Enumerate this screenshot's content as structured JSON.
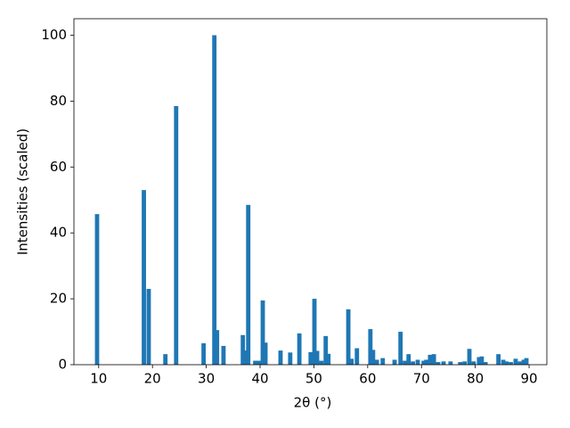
{
  "chart_data": {
    "type": "bar",
    "x_label": "2θ (°)",
    "y_label": "Intensities (scaled)",
    "x": [
      9.7,
      18.4,
      19.3,
      22.4,
      24.4,
      29.5,
      31.5,
      32.0,
      33.2,
      36.8,
      37.3,
      37.8,
      39.1,
      39.8,
      40.5,
      41.0,
      43.8,
      45.6,
      47.3,
      49.4,
      50.1,
      50.6,
      51.4,
      52.2,
      52.7,
      56.4,
      57.0,
      58.0,
      60.5,
      61.0,
      61.7,
      62.8,
      65.0,
      66.1,
      66.9,
      67.6,
      68.4,
      69.3,
      70.4,
      70.9,
      71.6,
      72.3,
      73.1,
      74.1,
      75.4,
      77.2,
      78.0,
      78.9,
      79.7,
      80.7,
      81.2,
      81.9,
      84.3,
      85.2,
      85.8,
      86.6,
      87.5,
      88.3,
      89.0,
      89.5
    ],
    "values": [
      45.7,
      53,
      23,
      3.2,
      78.5,
      6.5,
      100,
      10.5,
      5.7,
      9,
      4.3,
      48.5,
      1.2,
      1.2,
      19.5,
      6.7,
      4.3,
      3.7,
      9.5,
      3.8,
      20,
      4.2,
      1.2,
      8.7,
      3.3,
      16.8,
      1.8,
      5,
      10.8,
      4.5,
      1.5,
      2,
      1.5,
      10,
      1.2,
      3.2,
      1,
      1.5,
      1.2,
      1.5,
      3,
      3.2,
      0.8,
      1,
      1,
      0.8,
      1,
      4.8,
      1,
      2.3,
      2.5,
      0.8,
      3.2,
      1.5,
      1,
      0.8,
      1.8,
      1,
      1.5,
      2
    ],
    "color": "#1f77b4",
    "xlim": [
      5.4,
      93.3
    ],
    "ylim": [
      0,
      105
    ],
    "xticks": [
      10,
      20,
      30,
      40,
      50,
      60,
      70,
      80,
      90
    ],
    "yticks": [
      0,
      20,
      40,
      60,
      80,
      100
    ]
  }
}
